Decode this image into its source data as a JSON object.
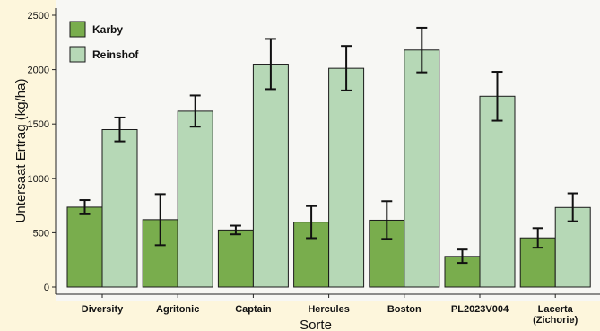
{
  "chart_data": {
    "type": "bar",
    "title": "",
    "xlabel": "Sorte",
    "ylabel": "Untersaat Ertrag  (kg/ha)",
    "ylim": [
      0,
      2500
    ],
    "yticks": [
      0,
      500,
      1000,
      1500,
      2000,
      2500
    ],
    "categories": [
      "Diversity",
      "Agritonic",
      "Captain",
      "Hercules",
      "Boston",
      "PL2023V004",
      "Lacerta"
    ],
    "category_sublabels": [
      "",
      "",
      "",
      "",
      "",
      "",
      "(Zichorie)"
    ],
    "series": [
      {
        "name": "Karby",
        "color": "#79ad4d",
        "values": [
          735,
          620,
          525,
          597,
          615,
          282,
          452
        ],
        "error_low": [
          670,
          385,
          485,
          450,
          443,
          222,
          362
        ],
        "error_high": [
          800,
          855,
          565,
          745,
          790,
          345,
          542
        ]
      },
      {
        "name": "Reinshof",
        "color": "#b6d8b6",
        "values": [
          1448,
          1618,
          2050,
          2012,
          2180,
          1755,
          732
        ],
        "error_low": [
          1340,
          1475,
          1820,
          1808,
          1975,
          1530,
          605
        ],
        "error_high": [
          1560,
          1762,
          2282,
          2218,
          2385,
          1980,
          862
        ]
      }
    ],
    "legend_position": "top-left",
    "grid": false
  }
}
